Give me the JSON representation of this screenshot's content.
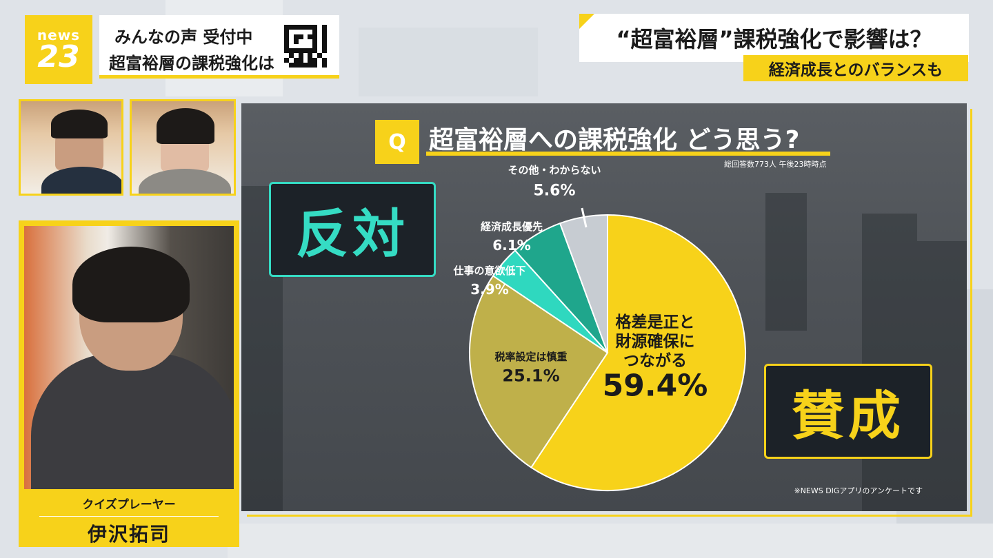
{
  "logo": {
    "line1": "news",
    "line2": "23"
  },
  "voice_box": {
    "line1": "みんなの声 受付中",
    "line2": "超富裕層の課税強化は"
  },
  "headline": {
    "main": "“超富裕層”課税強化で影響は？",
    "sub": "経済成長とのバランスも"
  },
  "presenter": {
    "role": "クイズプレーヤー",
    "name": "伊沢拓司"
  },
  "colors": {
    "accent": "#f7d21a",
    "oppose": "#35dcc4",
    "panel": "#4f5358"
  },
  "chart_data": {
    "type": "pie",
    "title": "超富裕層への課税強化 どう思う?",
    "question_badge": "Q",
    "note": "総回答数773人 午後23時時点",
    "footnote": "※NEWS DIGアプリのアンケートです",
    "stances": {
      "oppose": "反対",
      "agree": "賛成"
    },
    "start_angle_deg": 0,
    "slices": [
      {
        "label": "格差是正と財源確保につながる",
        "label_lines": [
          "格差是正と",
          "財源確保に",
          "つながる"
        ],
        "value": 59.4,
        "value_text": "59.4%",
        "color": "#f7d21a"
      },
      {
        "label": "税率設定は慎重",
        "value": 25.1,
        "value_text": "25.1%",
        "color": "#bfb04a"
      },
      {
        "label": "仕事の意欲低下",
        "value": 3.9,
        "value_text": "3.9%",
        "color": "#2fd8bf"
      },
      {
        "label": "経済成長優先",
        "value": 6.1,
        "value_text": "6.1%",
        "color": "#1fa68c"
      },
      {
        "label": "その他・わからない",
        "value": 5.6,
        "value_text": "5.6%",
        "color": "#c7ccd2"
      }
    ]
  }
}
